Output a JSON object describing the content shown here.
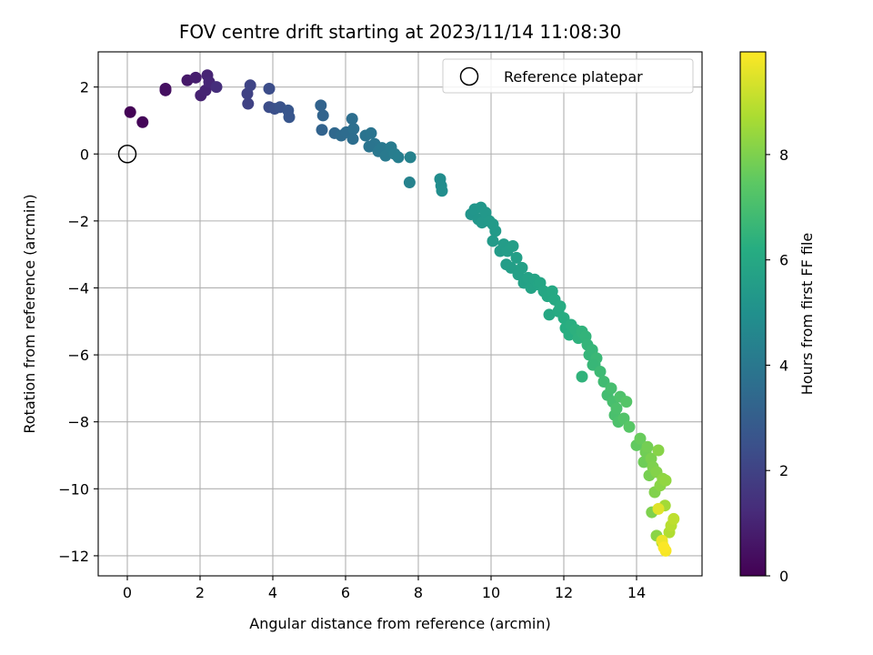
{
  "chart_data": {
    "type": "scatter",
    "title": "FOV centre drift starting at 2023/11/14 11:08:30",
    "xlabel": "Angular distance from reference (arcmin)",
    "ylabel": "Rotation from reference (arcmin)",
    "xlim": [
      -0.8,
      15.8
    ],
    "ylim": [
      -12.6,
      3.05
    ],
    "xticks": [
      0,
      2,
      4,
      6,
      8,
      10,
      12,
      14
    ],
    "yticks": [
      -12,
      -10,
      -8,
      -6,
      -4,
      -2,
      0,
      2
    ],
    "xtick_labels": [
      "0",
      "2",
      "4",
      "6",
      "8",
      "10",
      "12",
      "14"
    ],
    "ytick_labels": [
      "−12",
      "−10",
      "−8",
      "−6",
      "−4",
      "−2",
      "0",
      "2"
    ],
    "grid": true,
    "colormap": "viridis",
    "colorbar": {
      "label": "Hours from first FF file",
      "range": [
        0,
        9.95
      ],
      "ticks": [
        0,
        2,
        4,
        6,
        8
      ],
      "tick_labels": [
        "0",
        "2",
        "4",
        "6",
        "8"
      ]
    },
    "legend": {
      "placement": "upper right",
      "entries": [
        {
          "label": "Reference platepar",
          "marker": "open-circle"
        }
      ]
    },
    "reference_point": {
      "x": 0,
      "y": 0
    },
    "series": [
      {
        "x": [
          0.08,
          0.42,
          1.05,
          1.05,
          1.65,
          1.88,
          2.02,
          2.15,
          2.2,
          2.25,
          2.45,
          3.3,
          3.38,
          3.32,
          3.9,
          3.9,
          4.05,
          4.2,
          4.45,
          4.42,
          5.35,
          5.38,
          5.32,
          5.7,
          5.88,
          6.02,
          6.18,
          6.22,
          6.2,
          6.55,
          6.7,
          6.8,
          6.65,
          6.9,
          7.0,
          7.1,
          7.25,
          7.35,
          7.45,
          7.78,
          7.76,
          8.6,
          8.63,
          8.65,
          9.45,
          9.55,
          9.65,
          9.72,
          9.75,
          9.85,
          9.95,
          10.05,
          10.05,
          10.12,
          10.25,
          10.35,
          10.42,
          10.45,
          10.55,
          10.6,
          10.7,
          10.75,
          10.85,
          10.9,
          11.02,
          11.1,
          11.2,
          11.3,
          11.35,
          11.45,
          11.55,
          11.6,
          11.68,
          11.75,
          11.85,
          11.9,
          12.0,
          12.05,
          12.15,
          12.2,
          12.32,
          12.4,
          12.5,
          12.6,
          12.65,
          12.7,
          12.78,
          12.85,
          12.9,
          12.8,
          12.5,
          13.0,
          13.1,
          13.2,
          13.3,
          13.35,
          13.4,
          13.45,
          13.5,
          13.55,
          13.65,
          13.72,
          13.8,
          14.0,
          14.1,
          14.2,
          14.25,
          14.3,
          14.35,
          14.4,
          14.45,
          14.5,
          14.55,
          14.6,
          14.65,
          14.72,
          14.8,
          14.42,
          14.55,
          14.7,
          14.78,
          14.9,
          14.95,
          15.02,
          14.6,
          14.7,
          14.8,
          14.75
        ],
        "y": [
          1.25,
          0.95,
          1.9,
          1.95,
          2.2,
          2.28,
          1.75,
          1.9,
          2.35,
          2.15,
          2.0,
          1.8,
          2.05,
          1.5,
          1.95,
          1.4,
          1.35,
          1.4,
          1.1,
          1.3,
          0.72,
          1.15,
          1.45,
          0.62,
          0.55,
          0.65,
          1.05,
          0.75,
          0.45,
          0.55,
          0.62,
          0.3,
          0.22,
          0.08,
          0.18,
          -0.05,
          0.2,
          0.0,
          -0.1,
          -0.1,
          -0.85,
          -0.75,
          -0.95,
          -1.1,
          -1.8,
          -1.65,
          -1.95,
          -1.6,
          -2.05,
          -1.75,
          -2.0,
          -2.1,
          -2.6,
          -2.3,
          -2.9,
          -2.7,
          -3.3,
          -2.9,
          -3.4,
          -2.75,
          -3.1,
          -3.6,
          -3.4,
          -3.85,
          -3.7,
          -4.0,
          -3.75,
          -3.9,
          -3.85,
          -4.1,
          -4.25,
          -4.8,
          -4.1,
          -4.35,
          -4.7,
          -4.55,
          -4.9,
          -5.2,
          -5.4,
          -5.1,
          -5.25,
          -5.5,
          -5.3,
          -5.45,
          -5.7,
          -6.0,
          -5.85,
          -6.3,
          -6.1,
          -6.3,
          -6.65,
          -6.5,
          -6.8,
          -7.2,
          -7.0,
          -7.4,
          -7.8,
          -7.6,
          -8.0,
          -7.25,
          -7.9,
          -7.4,
          -8.15,
          -8.7,
          -8.5,
          -9.2,
          -8.9,
          -8.75,
          -9.6,
          -9.1,
          -9.35,
          -10.1,
          -9.5,
          -8.85,
          -9.9,
          -9.7,
          -9.75,
          -10.7,
          -11.4,
          -11.6,
          -10.5,
          -11.3,
          -11.1,
          -10.9,
          -10.6,
          -11.55,
          -11.85,
          -11.75
        ],
        "hours": [
          0.05,
          0.12,
          0.4,
          0.42,
          0.7,
          0.85,
          0.95,
          1.0,
          1.05,
          1.1,
          1.3,
          2.0,
          2.05,
          2.0,
          2.35,
          2.35,
          2.45,
          2.55,
          2.7,
          2.7,
          3.2,
          3.22,
          3.2,
          3.4,
          3.48,
          3.55,
          3.62,
          3.65,
          3.62,
          3.8,
          3.85,
          3.9,
          3.85,
          3.98,
          4.02,
          4.08,
          4.15,
          4.2,
          4.25,
          4.4,
          4.4,
          4.85,
          4.87,
          4.88,
          5.2,
          5.22,
          5.25,
          5.28,
          5.3,
          5.33,
          5.36,
          5.4,
          5.4,
          5.42,
          5.46,
          5.5,
          5.52,
          5.53,
          5.57,
          5.58,
          5.62,
          5.64,
          5.68,
          5.7,
          5.74,
          5.77,
          5.8,
          5.85,
          5.87,
          5.92,
          5.96,
          5.98,
          6.02,
          6.05,
          6.1,
          6.12,
          6.17,
          6.2,
          6.25,
          6.28,
          6.35,
          6.4,
          6.45,
          6.5,
          6.53,
          6.56,
          6.6,
          6.65,
          6.68,
          6.62,
          6.45,
          6.75,
          6.82,
          6.9,
          6.97,
          7.0,
          7.04,
          7.08,
          7.12,
          7.15,
          7.22,
          7.28,
          7.35,
          7.55,
          7.65,
          7.75,
          7.8,
          7.85,
          7.9,
          7.95,
          8.0,
          8.05,
          8.1,
          8.15,
          8.2,
          8.25,
          8.32,
          8.0,
          8.2,
          8.5,
          8.6,
          8.8,
          8.9,
          9.0,
          9.5,
          9.7,
          9.85,
          9.9
        ]
      }
    ]
  }
}
